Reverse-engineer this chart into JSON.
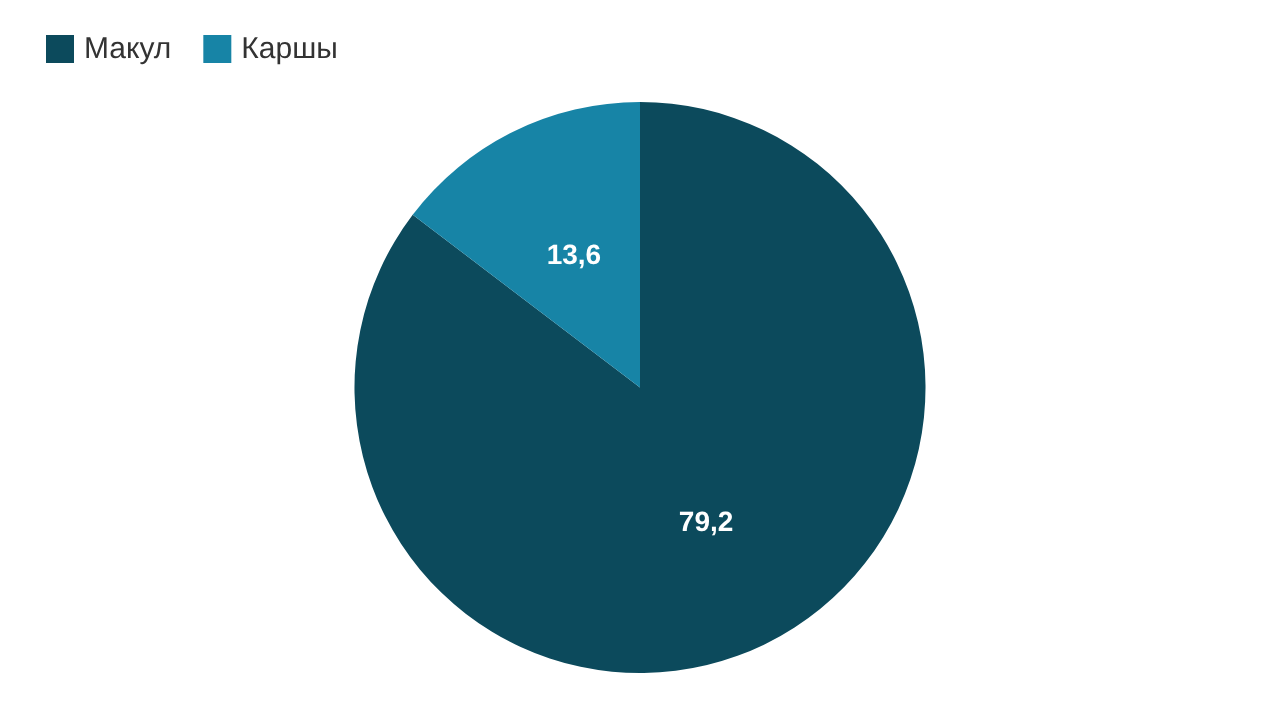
{
  "chart_data": {
    "type": "pie",
    "categories": [
      "Макул",
      "Каршы"
    ],
    "values": [
      79.2,
      13.6
    ],
    "colors": [
      "#0c4a5c",
      "#1784a6"
    ],
    "value_labels": [
      "79,2",
      "13,6"
    ],
    "legend": "top left"
  }
}
